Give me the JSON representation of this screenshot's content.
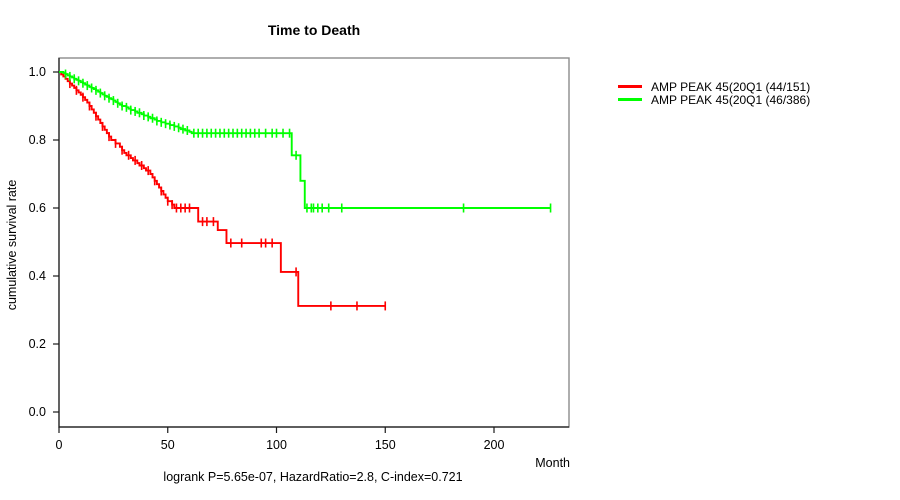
{
  "chart_data": {
    "type": "line",
    "subtype": "kaplan-meier-step-curves",
    "title": "Time to Death",
    "xlabel": "Month",
    "ylabel": "cumulative survival rate",
    "annotation": "logrank P=5.65e-07, HazardRatio=2.8, C-index=0.721",
    "xlim": [
      0,
      234
    ],
    "ylim": [
      0.0,
      1.0
    ],
    "xticks": [
      0,
      50,
      100,
      150,
      200
    ],
    "yticks": [
      0.0,
      0.2,
      0.4,
      0.6,
      0.8,
      1.0
    ],
    "grid": false,
    "legend_position": "right",
    "frame_color": "#8c8c8c",
    "axis_color": "#1a1a1a",
    "series": [
      {
        "name": "AMP PEAK 45(20Q1 (44/151)",
        "color": "#ff0000",
        "steps": [
          [
            0,
            1.0
          ],
          [
            1,
            0.993
          ],
          [
            2,
            0.987
          ],
          [
            3,
            0.98
          ],
          [
            4,
            0.973
          ],
          [
            5,
            0.966
          ],
          [
            6,
            0.96
          ],
          [
            7,
            0.953
          ],
          [
            8,
            0.946
          ],
          [
            9,
            0.94
          ],
          [
            10,
            0.933
          ],
          [
            11,
            0.926
          ],
          [
            12,
            0.918
          ],
          [
            13,
            0.91
          ],
          [
            14,
            0.9
          ],
          [
            15,
            0.89
          ],
          [
            16,
            0.88
          ],
          [
            17,
            0.87
          ],
          [
            18,
            0.86
          ],
          [
            19,
            0.85
          ],
          [
            20,
            0.84
          ],
          [
            21,
            0.83
          ],
          [
            22,
            0.82
          ],
          [
            23,
            0.81
          ],
          [
            24,
            0.8
          ],
          [
            26,
            0.79
          ],
          [
            28,
            0.78
          ],
          [
            29,
            0.77
          ],
          [
            30,
            0.762
          ],
          [
            31,
            0.755
          ],
          [
            33,
            0.747
          ],
          [
            34,
            0.74
          ],
          [
            36,
            0.732
          ],
          [
            37,
            0.725
          ],
          [
            39,
            0.717
          ],
          [
            40,
            0.71
          ],
          [
            42,
            0.7
          ],
          [
            43,
            0.69
          ],
          [
            44,
            0.68
          ],
          [
            45,
            0.67
          ],
          [
            46,
            0.66
          ],
          [
            47,
            0.65
          ],
          [
            48,
            0.64
          ],
          [
            49,
            0.63
          ],
          [
            50,
            0.62
          ],
          [
            52,
            0.61
          ],
          [
            53,
            0.6
          ],
          [
            64,
            0.56
          ],
          [
            73,
            0.535
          ],
          [
            77,
            0.497
          ],
          [
            102,
            0.412
          ],
          [
            110,
            0.312
          ],
          [
            150,
            0.312
          ]
        ],
        "censor_months": [
          5,
          8,
          11,
          14,
          17,
          20,
          23,
          26,
          29,
          32,
          35,
          38,
          41,
          44,
          47,
          50,
          52,
          54,
          56,
          58,
          60,
          66,
          68,
          71,
          79,
          84,
          93,
          95,
          98,
          109,
          125,
          137,
          150
        ]
      },
      {
        "name": "AMP PEAK 45(20Q1 (46/386)",
        "color": "#00ff00",
        "steps": [
          [
            0,
            1.0
          ],
          [
            2,
            0.997
          ],
          [
            3,
            0.994
          ],
          [
            4,
            0.99
          ],
          [
            5,
            0.987
          ],
          [
            6,
            0.984
          ],
          [
            7,
            0.98
          ],
          [
            8,
            0.977
          ],
          [
            9,
            0.974
          ],
          [
            10,
            0.97
          ],
          [
            11,
            0.967
          ],
          [
            12,
            0.963
          ],
          [
            13,
            0.96
          ],
          [
            14,
            0.956
          ],
          [
            15,
            0.953
          ],
          [
            16,
            0.95
          ],
          [
            17,
            0.946
          ],
          [
            18,
            0.942
          ],
          [
            19,
            0.938
          ],
          [
            20,
            0.934
          ],
          [
            21,
            0.93
          ],
          [
            22,
            0.927
          ],
          [
            23,
            0.923
          ],
          [
            24,
            0.92
          ],
          [
            25,
            0.916
          ],
          [
            26,
            0.912
          ],
          [
            27,
            0.908
          ],
          [
            28,
            0.904
          ],
          [
            29,
            0.9
          ],
          [
            31,
            0.896
          ],
          [
            32,
            0.892
          ],
          [
            33,
            0.888
          ],
          [
            35,
            0.884
          ],
          [
            36,
            0.88
          ],
          [
            38,
            0.876
          ],
          [
            39,
            0.872
          ],
          [
            41,
            0.868
          ],
          [
            42,
            0.864
          ],
          [
            44,
            0.86
          ],
          [
            45,
            0.856
          ],
          [
            47,
            0.852
          ],
          [
            49,
            0.848
          ],
          [
            51,
            0.844
          ],
          [
            53,
            0.84
          ],
          [
            55,
            0.836
          ],
          [
            56,
            0.832
          ],
          [
            58,
            0.828
          ],
          [
            60,
            0.824
          ],
          [
            61,
            0.82
          ],
          [
            107,
            0.755
          ],
          [
            111,
            0.68
          ],
          [
            113,
            0.6
          ],
          [
            226,
            0.6
          ]
        ],
        "censor_months": [
          3,
          5,
          7,
          9,
          11,
          13,
          15,
          17,
          19,
          21,
          23,
          25,
          27,
          29,
          31,
          33,
          35,
          37,
          39,
          41,
          43,
          45,
          47,
          49,
          51,
          53,
          55,
          57,
          59,
          62,
          64,
          66,
          68,
          70,
          72,
          74,
          76,
          78,
          80,
          82,
          84,
          86,
          88,
          90,
          92,
          95,
          98,
          100,
          103,
          106,
          109,
          114,
          116,
          117,
          119,
          121,
          124,
          130,
          186,
          226
        ]
      }
    ]
  }
}
